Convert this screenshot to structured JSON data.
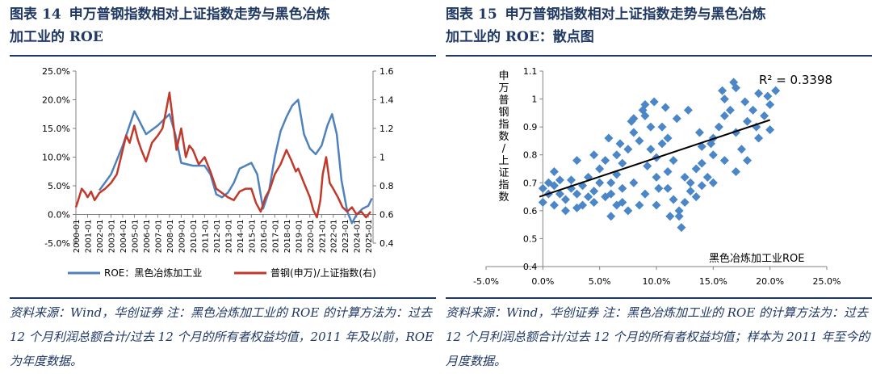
{
  "figures": [
    {
      "label": "图表",
      "number": "14",
      "title_line1": "申万普钢指数相对上证指数走势与黑色冶炼",
      "title_line2": "加工业的 ROE",
      "note": "资料来源：Wind，华创证券 注：黑色冶炼加工业的 ROE 的计算方法为：过去 12 个月利润总额合计/过去 12 个月的所有者权益均值，2011 年及以前，ROE 为年度数据。"
    },
    {
      "label": "图表",
      "number": "15",
      "title_line1": "申万普钢指数相对上证指数走势与黑色冶炼",
      "title_line2": "加工业的 ROE：散点图",
      "note": "资料来源：Wind，华创证券 注：黑色冶炼加工业的 ROE 的计算方法为：过去 12 个月利润总额合计/过去 12 个月的所有者权益均值；样本为 2011 年至今的月度数据。"
    }
  ],
  "chart_data": [
    {
      "type": "line",
      "x": [
        "2000-01",
        "2001-01",
        "2002-01",
        "2003-01",
        "2004-01",
        "2005-01",
        "2006-01",
        "2007-01",
        "2008-01",
        "2009-01",
        "2010-01",
        "2011-01",
        "2012-01",
        "2013-01",
        "2014-01",
        "2015-01",
        "2016-01",
        "2017-01",
        "2018-01",
        "2019-01",
        "2020-01",
        "2021-01",
        "2022-01",
        "2023-01",
        "2024-01",
        "2025-01"
      ],
      "y_ticks": [
        "-5.0%",
        "0.0%",
        "5.0%",
        "10.0%",
        "15.0%",
        "20.0%",
        "25.0%"
      ],
      "y2_ticks": [
        "0.4",
        "0.6",
        "0.8",
        "1",
        "1.2",
        "1.4",
        "1.6"
      ],
      "ylim": [
        -0.05,
        0.25
      ],
      "y2lim": [
        0.4,
        1.6
      ],
      "series": [
        {
          "name": "ROE：黑色冶炼加工业",
          "color": "#4f81bd",
          "axis": "left",
          "points": [
            [
              2002.0,
              0.042
            ],
            [
              2003.0,
              0.07
            ],
            [
              2004.0,
              0.12
            ],
            [
              2005.0,
              0.18
            ],
            [
              2006.0,
              0.14
            ],
            [
              2007.0,
              0.155
            ],
            [
              2008.0,
              0.175
            ],
            [
              2008.5,
              0.14
            ],
            [
              2009.0,
              0.09
            ],
            [
              2010.0,
              0.085
            ],
            [
              2011.0,
              0.085
            ],
            [
              2011.5,
              0.07
            ],
            [
              2012.0,
              0.035
            ],
            [
              2012.5,
              0.03
            ],
            [
              2013.0,
              0.038
            ],
            [
              2013.5,
              0.055
            ],
            [
              2014.0,
              0.08
            ],
            [
              2014.5,
              0.085
            ],
            [
              2015.0,
              0.09
            ],
            [
              2015.5,
              0.07
            ],
            [
              2016.0,
              0.01
            ],
            [
              2016.5,
              0.04
            ],
            [
              2017.0,
              0.1
            ],
            [
              2017.5,
              0.145
            ],
            [
              2018.0,
              0.17
            ],
            [
              2018.5,
              0.19
            ],
            [
              2019.0,
              0.2
            ],
            [
              2019.5,
              0.14
            ],
            [
              2020.0,
              0.115
            ],
            [
              2020.5,
              0.105
            ],
            [
              2021.0,
              0.12
            ],
            [
              2021.5,
              0.155
            ],
            [
              2021.9,
              0.175
            ],
            [
              2022.3,
              0.14
            ],
            [
              2022.7,
              0.06
            ],
            [
              2023.2,
              0.005
            ],
            [
              2023.6,
              -0.015
            ],
            [
              2024.0,
              0.0
            ],
            [
              2024.5,
              0.01
            ],
            [
              2025.0,
              0.015
            ],
            [
              2025.3,
              0.028
            ]
          ]
        },
        {
          "name": "普钢(申万)/上证指数(右)",
          "color": "#c0392b",
          "axis": "right",
          "points": [
            [
              2000.0,
              0.65
            ],
            [
              2000.2,
              0.7
            ],
            [
              2000.5,
              0.78
            ],
            [
              2000.8,
              0.75
            ],
            [
              2001.0,
              0.72
            ],
            [
              2001.3,
              0.76
            ],
            [
              2001.6,
              0.7
            ],
            [
              2002.0,
              0.75
            ],
            [
              2002.5,
              0.78
            ],
            [
              2003.0,
              0.82
            ],
            [
              2003.5,
              0.88
            ],
            [
              2004.0,
              1.05
            ],
            [
              2004.3,
              1.15
            ],
            [
              2004.6,
              1.1
            ],
            [
              2005.0,
              1.22
            ],
            [
              2005.3,
              1.12
            ],
            [
              2005.6,
              1.05
            ],
            [
              2006.0,
              0.97
            ],
            [
              2006.5,
              1.1
            ],
            [
              2007.0,
              1.15
            ],
            [
              2007.4,
              1.2
            ],
            [
              2007.7,
              1.32
            ],
            [
              2008.0,
              1.45
            ],
            [
              2008.3,
              1.25
            ],
            [
              2008.6,
              1.05
            ],
            [
              2009.0,
              1.2
            ],
            [
              2009.4,
              1.0
            ],
            [
              2009.7,
              1.08
            ],
            [
              2010.0,
              1.05
            ],
            [
              2010.5,
              0.95
            ],
            [
              2011.0,
              1.0
            ],
            [
              2011.5,
              0.9
            ],
            [
              2012.0,
              0.78
            ],
            [
              2012.5,
              0.75
            ],
            [
              2013.0,
              0.72
            ],
            [
              2013.5,
              0.7
            ],
            [
              2014.0,
              0.76
            ],
            [
              2014.5,
              0.78
            ],
            [
              2015.0,
              0.78
            ],
            [
              2015.4,
              0.68
            ],
            [
              2015.8,
              0.62
            ],
            [
              2016.2,
              0.72
            ],
            [
              2016.6,
              0.78
            ],
            [
              2017.0,
              0.88
            ],
            [
              2017.5,
              0.95
            ],
            [
              2018.0,
              1.05
            ],
            [
              2018.4,
              0.98
            ],
            [
              2018.8,
              0.9
            ],
            [
              2019.0,
              0.92
            ],
            [
              2019.5,
              0.82
            ],
            [
              2020.0,
              0.72
            ],
            [
              2020.3,
              0.63
            ],
            [
              2020.6,
              0.58
            ],
            [
              2020.9,
              0.7
            ],
            [
              2021.1,
              0.88
            ],
            [
              2021.4,
              1.0
            ],
            [
              2021.7,
              0.82
            ],
            [
              2022.0,
              0.78
            ],
            [
              2022.4,
              0.72
            ],
            [
              2022.8,
              0.65
            ],
            [
              2023.2,
              0.62
            ],
            [
              2023.6,
              0.65
            ],
            [
              2024.0,
              0.6
            ],
            [
              2024.4,
              0.62
            ],
            [
              2024.8,
              0.58
            ],
            [
              2025.0,
              0.6
            ],
            [
              2025.2,
              0.62
            ]
          ]
        }
      ]
    },
    {
      "type": "scatter",
      "xlabel": "黑色冶炼加工业ROE",
      "ylabel": "申万普钢指数/上证指数",
      "annotation": "R² = 0.3398",
      "x_ticks": [
        "-5.0%",
        "0.0%",
        "5.0%",
        "10.0%",
        "15.0%",
        "20.0%",
        "25.0%"
      ],
      "y_ticks": [
        "0.4",
        "0.5",
        "0.6",
        "0.7",
        "0.8",
        "0.9",
        "1",
        "1.1"
      ],
      "xlim": [
        -0.05,
        0.25
      ],
      "ylim": [
        0.4,
        1.1
      ],
      "marker_color": "#4a86c8",
      "trendline": {
        "x": [
          -0.003,
          0.2
        ],
        "y": [
          0.65,
          0.925
        ],
        "color": "#000000"
      },
      "points": [
        [
          0.0,
          0.63
        ],
        [
          0.005,
          0.66
        ],
        [
          0.01,
          0.62
        ],
        [
          0.01,
          0.69
        ],
        [
          0.015,
          0.66
        ],
        [
          0.02,
          0.64
        ],
        [
          0.025,
          0.68
        ],
        [
          0.025,
          0.71
        ],
        [
          0.03,
          0.66
        ],
        [
          0.03,
          0.61
        ],
        [
          0.035,
          0.69
        ],
        [
          0.04,
          0.65
        ],
        [
          0.04,
          0.72
        ],
        [
          0.045,
          0.67
        ],
        [
          0.05,
          0.7
        ],
        [
          0.05,
          0.75
        ],
        [
          0.055,
          0.65
        ],
        [
          0.055,
          0.78
        ],
        [
          0.06,
          0.7
        ],
        [
          0.065,
          0.73
        ],
        [
          0.065,
          0.8
        ],
        [
          0.07,
          0.68
        ],
        [
          0.07,
          0.77
        ],
        [
          0.075,
          0.82
        ],
        [
          0.08,
          0.88
        ],
        [
          0.08,
          0.93
        ],
        [
          0.085,
          0.85
        ],
        [
          0.09,
          0.98
        ],
        [
          0.09,
          0.94
        ],
        [
          0.095,
          0.9
        ],
        [
          0.1,
          0.79
        ],
        [
          0.1,
          0.72
        ],
        [
          0.105,
          0.84
        ],
        [
          0.11,
          0.74
        ],
        [
          0.11,
          0.68
        ],
        [
          0.115,
          0.64
        ],
        [
          0.12,
          0.6
        ],
        [
          0.12,
          0.58
        ],
        [
          0.125,
          0.63
        ],
        [
          0.13,
          0.67
        ],
        [
          0.13,
          0.7
        ],
        [
          0.135,
          0.75
        ],
        [
          0.14,
          0.83
        ],
        [
          0.14,
          0.77
        ],
        [
          0.145,
          0.72
        ],
        [
          0.15,
          0.8
        ],
        [
          0.15,
          0.86
        ],
        [
          0.155,
          0.9
        ],
        [
          0.16,
          0.94
        ],
        [
          0.16,
          1.0
        ],
        [
          0.165,
          0.96
        ],
        [
          0.17,
          1.04
        ],
        [
          0.17,
          0.88
        ],
        [
          0.175,
          0.82
        ],
        [
          0.18,
          0.92
        ],
        [
          0.185,
          0.96
        ],
        [
          0.19,
          1.02
        ],
        [
          0.195,
          0.94
        ],
        [
          0.2,
          0.98
        ],
        [
          0.2,
          0.89
        ],
        [
          0.19,
          0.86
        ],
        [
          0.18,
          0.78
        ],
        [
          0.17,
          0.74
        ],
        [
          0.16,
          0.78
        ],
        [
          0.15,
          0.7
        ],
        [
          0.14,
          0.69
        ],
        [
          0.135,
          0.65
        ],
        [
          0.125,
          0.72
        ],
        [
          0.115,
          0.78
        ],
        [
          0.105,
          0.9
        ],
        [
          0.095,
          0.82
        ],
        [
          0.085,
          0.62
        ],
        [
          0.075,
          0.6
        ],
        [
          0.065,
          0.62
        ],
        [
          0.06,
          0.66
        ],
        [
          0.045,
          0.63
        ],
        [
          0.035,
          0.62
        ],
        [
          0.02,
          0.6
        ],
        [
          0.015,
          0.71
        ],
        [
          0.005,
          0.7
        ],
        [
          0.0,
          0.68
        ],
        [
          0.01,
          0.74
        ],
        [
          0.03,
          0.78
        ],
        [
          0.045,
          0.8
        ],
        [
          0.058,
          0.86
        ],
        [
          0.068,
          0.84
        ],
        [
          0.078,
          0.92
        ],
        [
          0.088,
          0.96
        ],
        [
          0.098,
          0.99
        ],
        [
          0.108,
          0.97
        ],
        [
          0.118,
          0.93
        ],
        [
          0.128,
          0.96
        ],
        [
          0.138,
          0.88
        ],
        [
          0.148,
          0.84
        ],
        [
          0.158,
          1.03
        ],
        [
          0.168,
          1.06
        ],
        [
          0.178,
          0.99
        ],
        [
          0.188,
          0.9
        ],
        [
          0.198,
          1.01
        ],
        [
          0.205,
          1.03
        ],
        [
          0.11,
          0.86
        ],
        [
          0.1,
          0.62
        ],
        [
          0.09,
          0.66
        ],
        [
          0.08,
          0.7
        ],
        [
          0.07,
          0.63
        ],
        [
          0.06,
          0.58
        ],
        [
          0.092,
          0.76
        ],
        [
          0.102,
          0.68
        ],
        [
          0.112,
          0.58
        ],
        [
          0.122,
          0.54
        ]
      ]
    }
  ]
}
